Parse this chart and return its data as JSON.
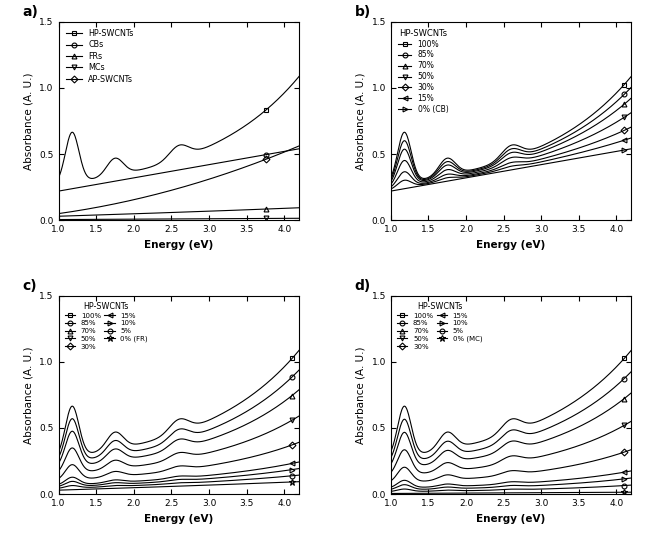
{
  "xlim": [
    1.0,
    4.2
  ],
  "ylim": [
    0.0,
    1.5
  ],
  "xlabel": "Energy (eV)",
  "ylabel": "Absorbance (A. U.)",
  "panel_labels": [
    "a)",
    "b)",
    "c)",
    "d)"
  ],
  "xticks": [
    1.0,
    1.5,
    2.0,
    2.5,
    3.0,
    3.5,
    4.0
  ],
  "yticks": [
    0.0,
    0.5,
    1.0,
    1.5
  ],
  "panel_a": {
    "legend_labels": [
      "HP-SWCNTs",
      "CBs",
      "FRs",
      "MCs",
      "AP-SWCNTs"
    ],
    "markers": [
      "s",
      "o",
      "^",
      "v",
      "D"
    ]
  },
  "panel_b": {
    "legend_title": "HP-SWCNTs",
    "legend_labels": [
      "100%",
      "85%",
      "70%",
      "50%",
      "30%",
      "15%",
      "0% (CB)"
    ],
    "markers": [
      "s",
      "o",
      "^",
      "v",
      "D",
      "<",
      ">"
    ],
    "fracs": [
      1.0,
      0.85,
      0.7,
      0.5,
      0.3,
      0.15,
      0.0
    ]
  },
  "panel_c": {
    "legend_title": "HP-SWCNTs",
    "legend_col1": [
      "100%",
      "85%",
      "70%",
      "50%",
      "30%"
    ],
    "legend_col2": [
      "15%",
      "10%",
      "5%",
      "0% (FR)"
    ],
    "markers_col1": [
      "s",
      "o",
      "^",
      "v",
      "D"
    ],
    "markers_col2": [
      "<",
      ">",
      "o",
      "★"
    ],
    "fracs": [
      1.0,
      0.85,
      0.7,
      0.5,
      0.3,
      0.15,
      0.1,
      0.05,
      0.0
    ]
  },
  "panel_d": {
    "legend_title": "HP-SWCNTs",
    "legend_col1": [
      "100%",
      "85%",
      "70%",
      "50%",
      "30%"
    ],
    "legend_col2": [
      "15%",
      "10%",
      "5%",
      "0% (MC)"
    ],
    "markers_col1": [
      "s",
      "o",
      "^",
      "v",
      "D"
    ],
    "markers_col2": [
      "<",
      ">",
      "o",
      "★"
    ],
    "fracs": [
      1.0,
      0.85,
      0.7,
      0.5,
      0.3,
      0.15,
      0.1,
      0.05,
      0.0
    ]
  }
}
